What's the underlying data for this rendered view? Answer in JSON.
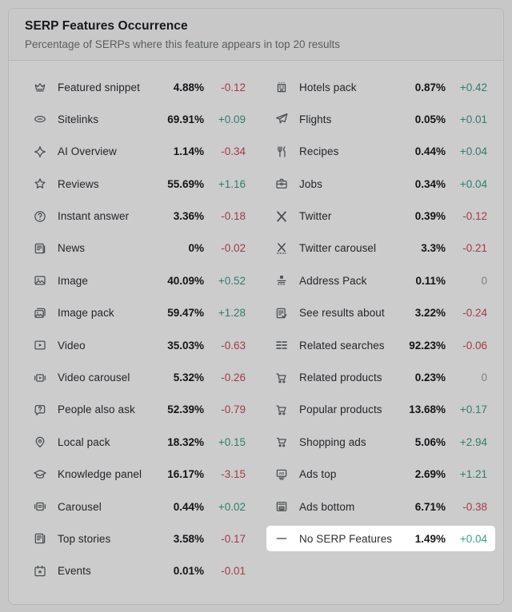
{
  "panel": {
    "title": "SERP Features Occurrence",
    "subtitle": "Percentage of SERPs where this feature appears in top 20 results"
  },
  "colors": {
    "up": "#3E9C8C",
    "down": "#CB4A52",
    "zero": "#9CA1A8",
    "icon": "#5d6269",
    "dim_overlay": "rgba(0,0,0,0.2)"
  },
  "columns": {
    "left": [
      {
        "icon": "crown-icon",
        "label": "Featured snippet",
        "value": "4.88%",
        "diff": "-0.12"
      },
      {
        "icon": "link-icon",
        "label": "Sitelinks",
        "value": "69.91%",
        "diff": "+0.09"
      },
      {
        "icon": "sparkle-icon",
        "label": "AI Overview",
        "value": "1.14%",
        "diff": "-0.34"
      },
      {
        "icon": "star-icon",
        "label": "Reviews",
        "value": "55.69%",
        "diff": "+1.16"
      },
      {
        "icon": "question-circle-icon",
        "label": "Instant answer",
        "value": "3.36%",
        "diff": "-0.18"
      },
      {
        "icon": "news-icon",
        "label": "News",
        "value": "0%",
        "diff": "-0.02"
      },
      {
        "icon": "image-icon",
        "label": "Image",
        "value": "40.09%",
        "diff": "+0.52"
      },
      {
        "icon": "image-pack-icon",
        "label": "Image pack",
        "value": "59.47%",
        "diff": "+1.28"
      },
      {
        "icon": "video-icon",
        "label": "Video",
        "value": "35.03%",
        "diff": "-0.63"
      },
      {
        "icon": "video-carousel-icon",
        "label": "Video carousel",
        "value": "5.32%",
        "diff": "-0.26"
      },
      {
        "icon": "question-bubble-icon",
        "label": "People also ask",
        "value": "52.39%",
        "diff": "-0.79"
      },
      {
        "icon": "map-pin-icon",
        "label": "Local pack",
        "value": "18.32%",
        "diff": "+0.15"
      },
      {
        "icon": "graduation-cap-icon",
        "label": "Knowledge panel",
        "value": "16.17%",
        "diff": "-3.15"
      },
      {
        "icon": "carousel-icon",
        "label": "Carousel",
        "value": "0.44%",
        "diff": "+0.02"
      },
      {
        "icon": "top-stories-icon",
        "label": "Top stories",
        "value": "3.58%",
        "diff": "-0.17"
      },
      {
        "icon": "calendar-star-icon",
        "label": "Events",
        "value": "0.01%",
        "diff": "-0.01"
      }
    ],
    "right": [
      {
        "icon": "hotel-icon",
        "label": "Hotels pack",
        "value": "0.87%",
        "diff": "+0.42"
      },
      {
        "icon": "plane-icon",
        "label": "Flights",
        "value": "0.05%",
        "diff": "+0.01"
      },
      {
        "icon": "cutlery-icon",
        "label": "Recipes",
        "value": "0.44%",
        "diff": "+0.04"
      },
      {
        "icon": "briefcase-icon",
        "label": "Jobs",
        "value": "0.34%",
        "diff": "+0.04"
      },
      {
        "icon": "x-icon",
        "label": "Twitter",
        "value": "0.39%",
        "diff": "-0.12"
      },
      {
        "icon": "x-carousel-icon",
        "label": "Twitter carousel",
        "value": "3.3%",
        "diff": "-0.21"
      },
      {
        "icon": "address-pack-icon",
        "label": "Address Pack",
        "value": "0.11%",
        "diff": "0"
      },
      {
        "icon": "document-check-icon",
        "label": "See results about",
        "value": "3.22%",
        "diff": "-0.24"
      },
      {
        "icon": "related-searches-icon",
        "label": "Related searches",
        "value": "92.23%",
        "diff": "-0.06"
      },
      {
        "icon": "cart-icon",
        "label": "Related products",
        "value": "0.23%",
        "diff": "0"
      },
      {
        "icon": "cart-icon",
        "label": "Popular products",
        "value": "13.68%",
        "diff": "+0.17"
      },
      {
        "icon": "shopping-cart-icon",
        "label": "Shopping ads",
        "value": "5.06%",
        "diff": "+2.94"
      },
      {
        "icon": "ads-top-icon",
        "label": "Ads top",
        "value": "2.69%",
        "diff": "+1.21"
      },
      {
        "icon": "ads-bottom-icon",
        "label": "Ads bottom",
        "value": "6.71%",
        "diff": "-0.38"
      },
      {
        "icon": "dash-icon",
        "label": "No SERP Features",
        "value": "1.49%",
        "diff": "+0.04",
        "highlighted": true
      }
    ]
  }
}
